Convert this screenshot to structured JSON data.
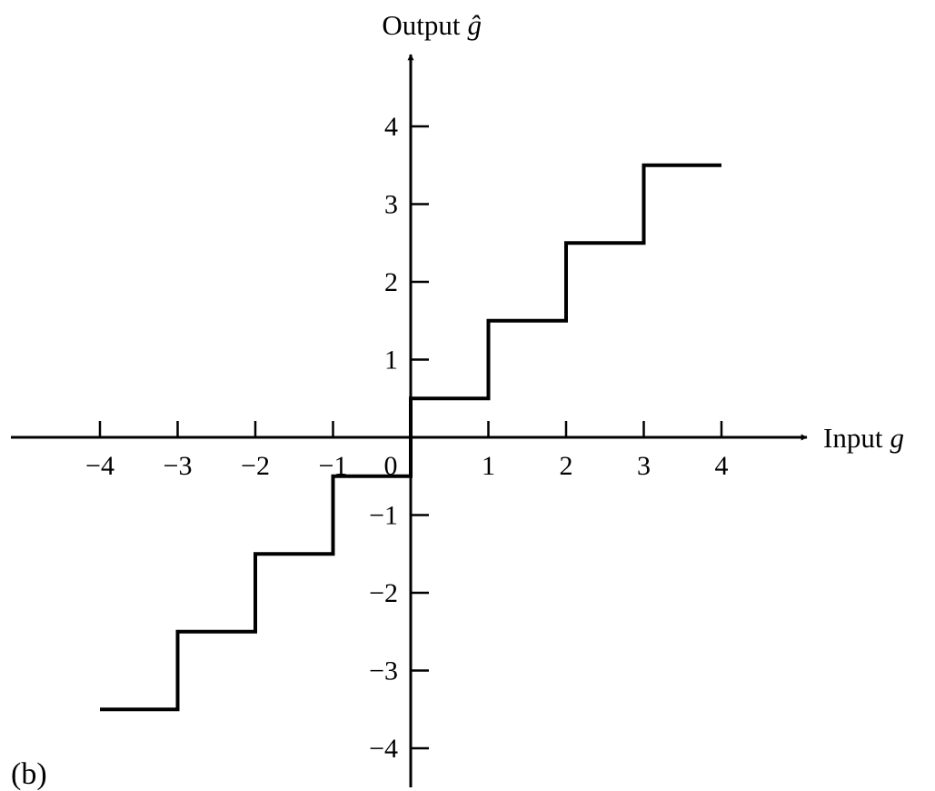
{
  "panel_label": "(b)",
  "chart_data": {
    "type": "line",
    "title": "",
    "xlabel": "Input",
    "xlabel_var": "g",
    "ylabel": "Output",
    "ylabel_var": "ĝ",
    "xlim": [
      -4,
      4
    ],
    "ylim": [
      -4,
      4
    ],
    "x_ticks": [
      -4,
      -3,
      -2,
      -1,
      0,
      1,
      2,
      3,
      4
    ],
    "x_tick_labels": [
      "−4",
      "−3",
      "−2",
      "−1",
      "0",
      "1",
      "2",
      "3",
      "4"
    ],
    "y_ticks": [
      -4,
      -3,
      -2,
      -1,
      1,
      2,
      3,
      4
    ],
    "y_tick_labels": [
      "−4",
      "−3",
      "−2",
      "−1",
      "1",
      "2",
      "3",
      "4"
    ],
    "grid": false,
    "series": [
      {
        "step_edges": [
          -4,
          -3,
          -2,
          -1,
          0,
          1,
          2,
          3,
          4
        ],
        "step_values": [
          -3.5,
          -2.5,
          -1.5,
          -0.5,
          0.5,
          1.5,
          2.5,
          3.5
        ]
      }
    ]
  }
}
